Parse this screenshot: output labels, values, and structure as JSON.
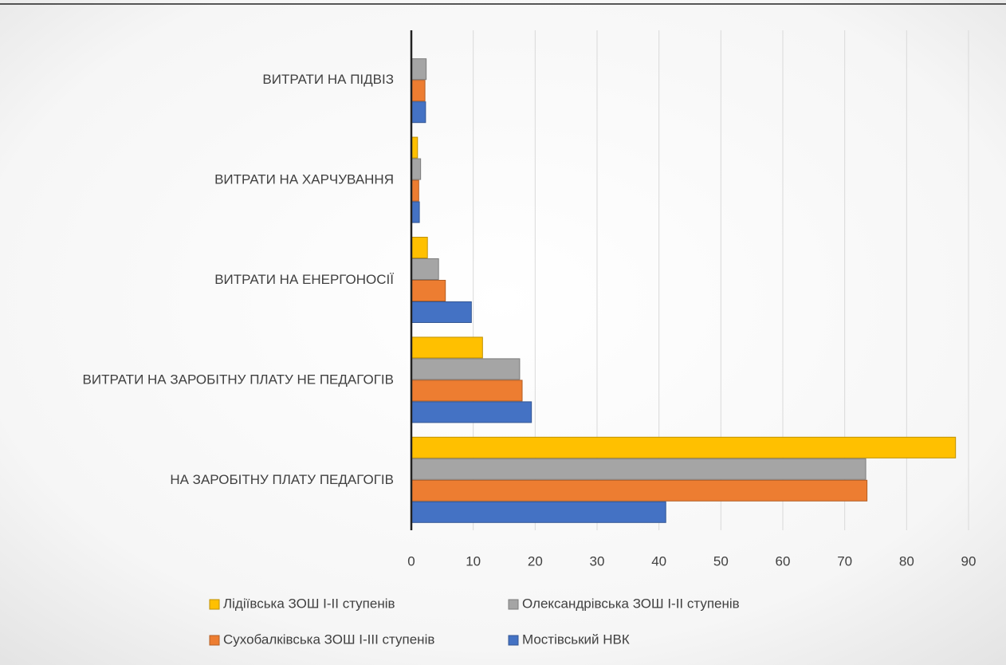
{
  "chart_data": {
    "type": "hbar",
    "categories": [
      "НА ЗАРОБІТНУ ПЛАТУ ПЕДАГОГІВ",
      "ВИТРАТИ НА ЗАРОБІТНУ ПЛАТУ НЕ ПЕДАГОГІВ",
      "ВИТРАТИ НА ЕНЕРГОНОСІЇ",
      "ВИТРАТИ НА ХАРЧУВАННЯ",
      "ВИТРАТИ НА ПІДВІЗ"
    ],
    "series": [
      {
        "name": "Лідіївська ЗОШ І-ІІ ступенів",
        "color": "#ffc000",
        "values": [
          87.9,
          11.5,
          2.6,
          1.0,
          null
        ]
      },
      {
        "name": "Олександрівська ЗОШ І-ІІ ступенів",
        "color": "#a5a5a5",
        "values": [
          73.4,
          17.5,
          4.4,
          1.5,
          2.4
        ]
      },
      {
        "name": "Сухобалківська ЗОШ І-ІІІ ступенів",
        "color": "#ed7d31",
        "values": [
          73.6,
          17.9,
          5.5,
          1.2,
          2.2
        ]
      },
      {
        "name": "Мостівський НВК",
        "color": "#4472c4",
        "values": [
          41.1,
          19.4,
          9.7,
          1.3,
          2.3
        ]
      }
    ],
    "xlim": [
      0,
      90
    ],
    "xticks": [
      0,
      10,
      20,
      30,
      40,
      50,
      60,
      70,
      80,
      90
    ],
    "grid": true,
    "legend": "bottom"
  }
}
